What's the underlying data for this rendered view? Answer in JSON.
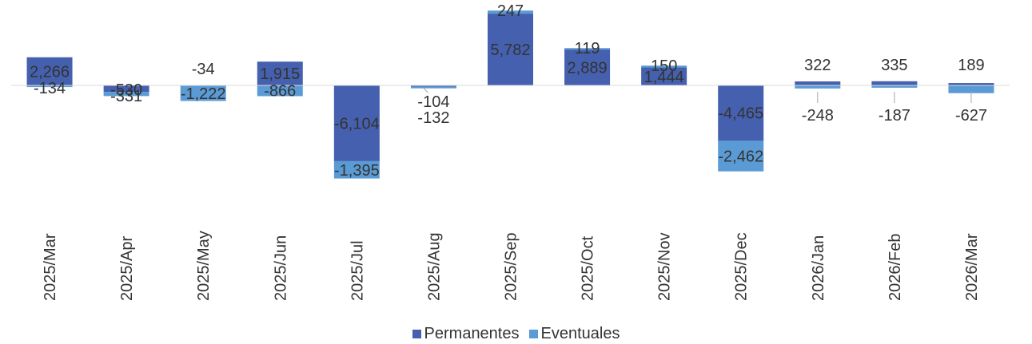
{
  "chart_data": {
    "type": "bar",
    "stacked": true,
    "categories": [
      "2025/Mar",
      "2025/Apr",
      "2025/May",
      "2025/Jun",
      "2025/Jul",
      "2025/Aug",
      "2025/Sep",
      "2025/Oct",
      "2025/Nov",
      "2025/Dec",
      "2026/Jan",
      "2026/Feb",
      "2026/Mar"
    ],
    "series": [
      {
        "name": "Permanentes",
        "color": "#4560AE",
        "values": [
          2266,
          -530,
          -34,
          1915,
          -6104,
          -104,
          5782,
          2889,
          1444,
          -4465,
          322,
          335,
          189
        ],
        "labels": [
          "2,266",
          "-530",
          "-34",
          "1,915",
          "-6,104",
          "-104",
          "5,782",
          "2,889",
          "1,444",
          "-4,465",
          "322",
          "335",
          "189"
        ]
      },
      {
        "name": "Eventuales",
        "color": "#5B9BD5",
        "values": [
          -134,
          -331,
          -1222,
          -866,
          -1395,
          -132,
          247,
          119,
          150,
          -2462,
          -248,
          -187,
          -627
        ],
        "labels": [
          "-134",
          "-331",
          "-1,222",
          "-866",
          "-1,395",
          "-132",
          "247",
          "119",
          "150",
          "-2,462",
          "-248",
          "-187",
          "-627"
        ]
      }
    ],
    "title": "",
    "xlabel": "",
    "ylabel": "",
    "ylim": [
      -8000,
      6200
    ],
    "grid": false,
    "legend": "bottom"
  }
}
